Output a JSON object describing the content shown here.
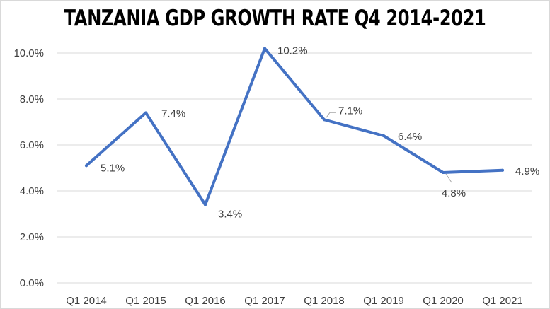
{
  "chart_data": {
    "type": "line",
    "title": "TANZANIA GDP GROWTH RATE Q4 2014-2021",
    "xlabel": "",
    "ylabel": "",
    "categories": [
      "Q1 2014",
      "Q1 2015",
      "Q1 2016",
      "Q1 2017",
      "Q1 2018",
      "Q1 2019",
      "Q1 2020",
      "Q1 2021"
    ],
    "series": [
      {
        "values": [
          5.1,
          7.4,
          3.4,
          10.2,
          7.1,
          6.4,
          4.8,
          4.9
        ],
        "data_labels": [
          "5.1%",
          "7.4%",
          "3.4%",
          "10.2%",
          "7.1%",
          "6.4%",
          "4.8%",
          "4.9%"
        ],
        "color": "#4472c4"
      }
    ],
    "ylim": [
      0,
      10
    ],
    "yticks": [
      0,
      2,
      4,
      6,
      8,
      10
    ],
    "ytick_labels": [
      "0.0%",
      "2.0%",
      "4.0%",
      "6.0%",
      "8.0%",
      "10.0%"
    ],
    "grid": true,
    "gridline_color": "#d9d9d9",
    "legend": "none"
  }
}
